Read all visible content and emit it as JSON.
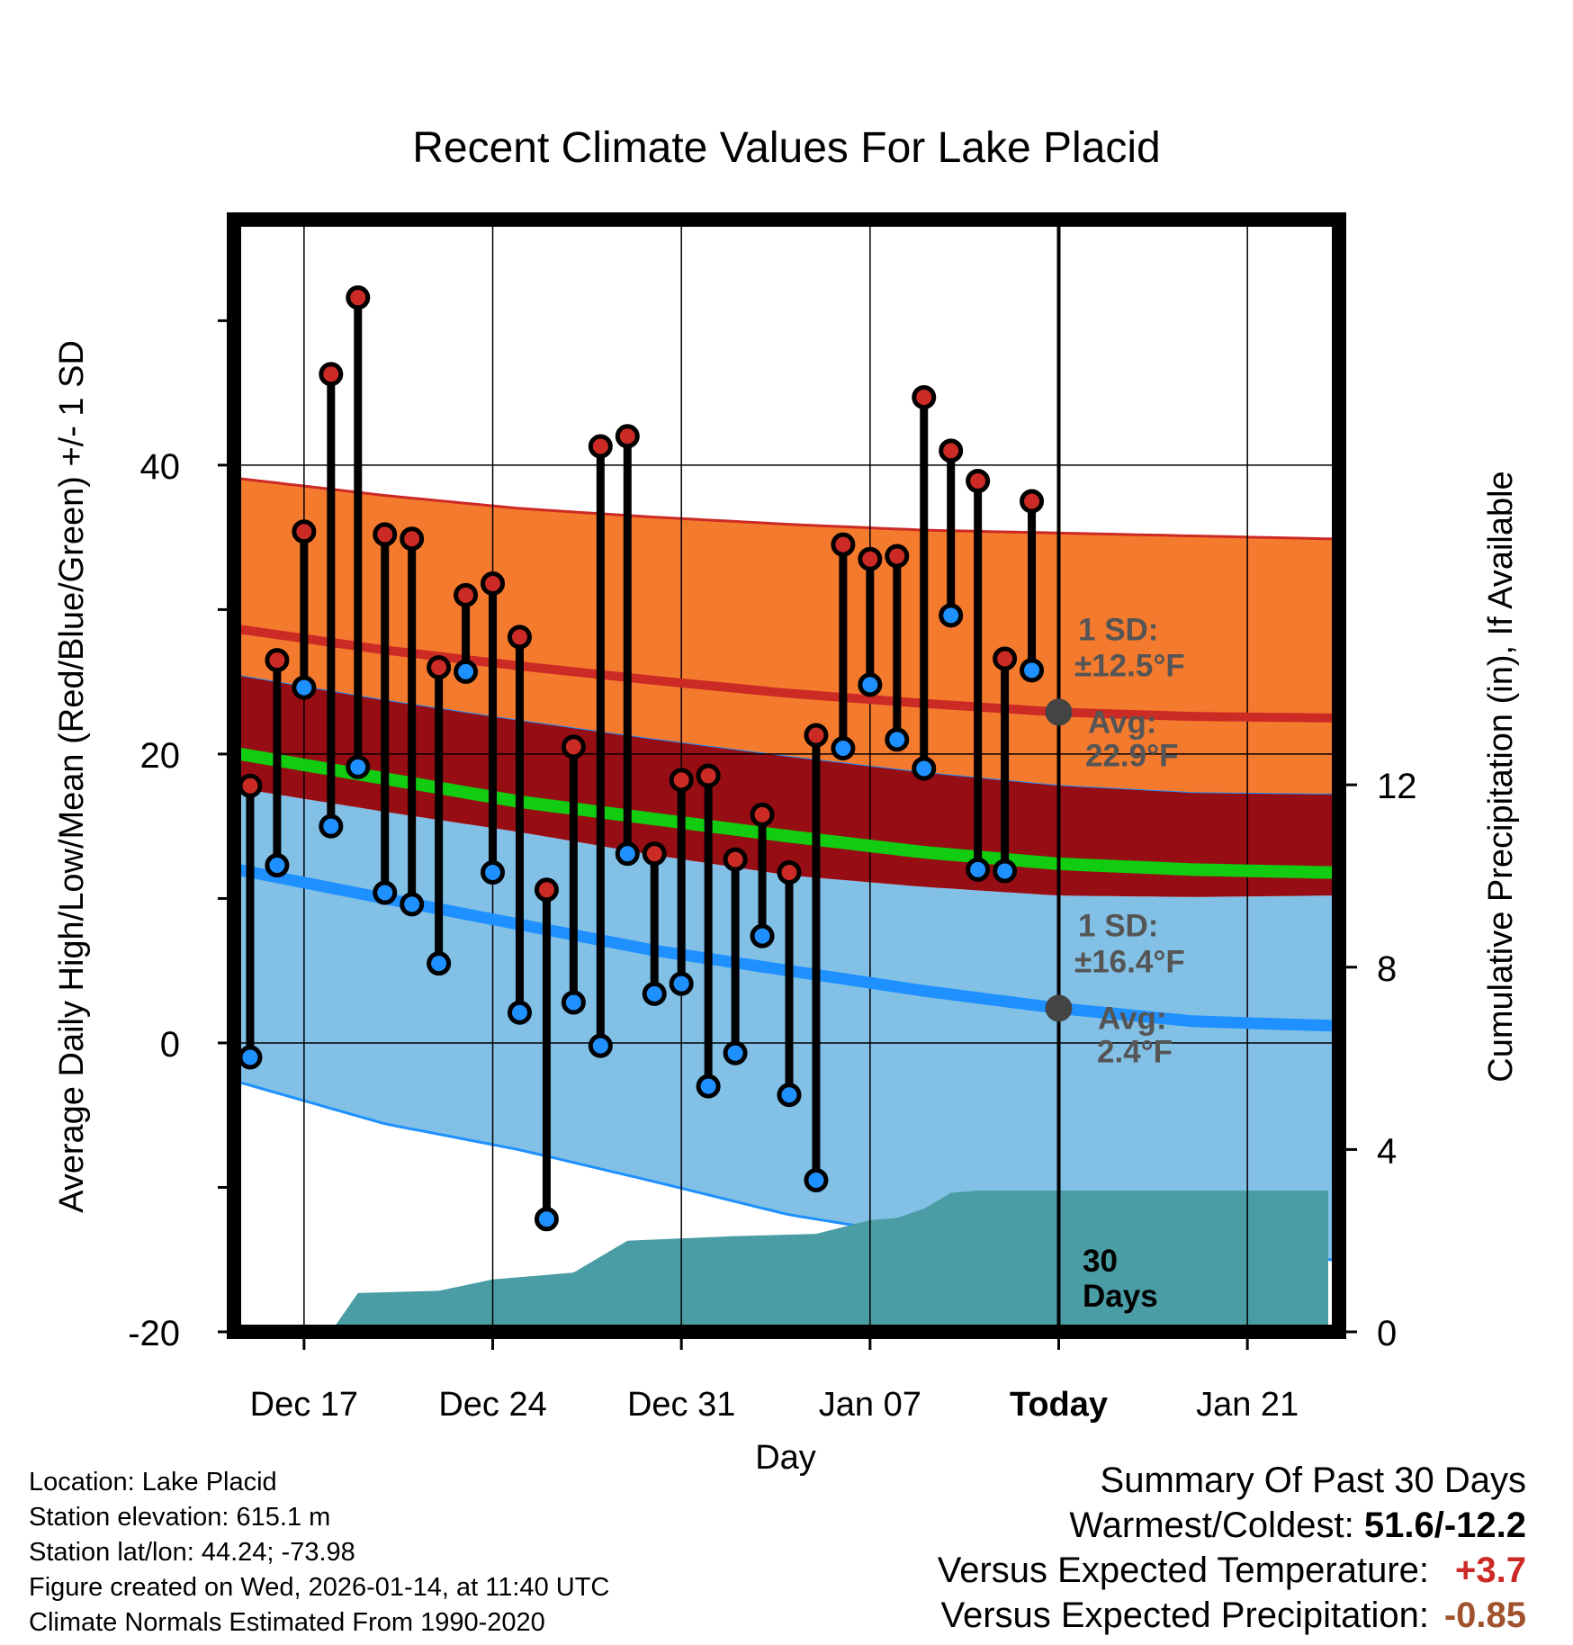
{
  "chart_data": {
    "type": "line",
    "title": "Recent Climate Values For Lake Placid",
    "xlabel": "Day",
    "ylabel": "Average Daily High/Low/Mean (Red/Blue/Green) +/- 1 SD",
    "y2label": "Cumulative Precipitation (in), If Available",
    "ylim": [
      -20,
      57
    ],
    "y2lim": [
      0,
      24.4
    ],
    "xlim": [
      -30.6,
      10.4
    ],
    "x_unit": "days relative to today (Jan 14)",
    "x_ticks": [
      {
        "x": -28,
        "label": "Dec 17"
      },
      {
        "x": -21,
        "label": "Dec 24"
      },
      {
        "x": -14,
        "label": "Dec 31"
      },
      {
        "x": -7,
        "label": "Jan 07"
      },
      {
        "x": 0,
        "label": "Today"
      },
      {
        "x": 7,
        "label": "Jan 21"
      }
    ],
    "y_ticks": [
      -20,
      0,
      20,
      40
    ],
    "y_minor_ticks": [
      -10,
      10,
      30,
      50
    ],
    "y2_ticks": [
      0,
      4,
      8,
      12
    ],
    "days": [
      -30,
      -29,
      -28,
      -27,
      -26,
      -25,
      -24,
      -23,
      -22,
      -21,
      -20,
      -19,
      -18,
      -17,
      -16,
      -15,
      -14,
      -13,
      -12,
      -11,
      -10,
      -9,
      -8,
      -7,
      -6,
      -5,
      -4,
      -3,
      -2,
      -1
    ],
    "series": [
      {
        "name": "Daily High",
        "color": "#cc2a25",
        "values": [
          17.8,
          26.5,
          35.4,
          46.3,
          51.6,
          35.2,
          34.9,
          26.0,
          31.0,
          31.8,
          28.1,
          10.6,
          20.5,
          41.3,
          42.0,
          13.1,
          18.2,
          18.5,
          12.7,
          15.8,
          11.8,
          21.3,
          34.5,
          33.5,
          33.7,
          44.7,
          41.0,
          38.9,
          26.6,
          37.5
        ]
      },
      {
        "name": "Daily Low",
        "color": "#1e90ff",
        "values": [
          -1.0,
          12.3,
          24.6,
          15.0,
          19.1,
          10.4,
          9.6,
          5.5,
          25.7,
          11.8,
          2.1,
          -12.2,
          2.8,
          -0.2,
          13.1,
          3.4,
          4.1,
          -3.0,
          -0.7,
          7.4,
          -3.6,
          -9.5,
          20.4,
          24.8,
          21.0,
          19.0,
          29.6,
          12.0,
          11.9,
          25.8
        ]
      }
    ],
    "normals": {
      "days": [
        -31,
        -25,
        -20,
        -15,
        -10,
        -5,
        0,
        5,
        10
      ],
      "high_avg": [
        28.8,
        27.2,
        26.1,
        25.1,
        24.2,
        23.5,
        22.9,
        22.6,
        22.5
      ],
      "high_upper": [
        39.2,
        37.9,
        37.0,
        36.4,
        35.9,
        35.5,
        35.3,
        35.1,
        34.9
      ],
      "high_lower": [
        25.6,
        23.7,
        22.3,
        21.0,
        19.8,
        18.7,
        17.8,
        17.3,
        17.2
      ],
      "mean_avg": [
        20.2,
        18.3,
        16.7,
        15.5,
        14.3,
        13.2,
        12.4,
        12.0,
        11.8
      ],
      "low_avg": [
        12.2,
        10.0,
        8.2,
        6.4,
        5.0,
        3.6,
        2.4,
        1.5,
        1.2
      ],
      "low_upper": [
        17.8,
        16.0,
        14.6,
        13.0,
        11.6,
        10.8,
        10.2,
        10.1,
        10.2
      ],
      "low_lower": [
        -2.4,
        -5.6,
        -7.4,
        -9.6,
        -11.9,
        -13.4,
        -14.3,
        -14.8,
        -15.0
      ]
    },
    "precip_cumulative": {
      "days": [
        -27,
        -26,
        -23,
        -21,
        -19,
        -18,
        -16,
        -12,
        -9,
        -8,
        -7,
        -6,
        -5,
        -4,
        -3,
        0,
        10
      ],
      "values": [
        0.0,
        0.85,
        0.9,
        1.15,
        1.25,
        1.3,
        2.0,
        2.1,
        2.15,
        2.3,
        2.45,
        2.5,
        2.7,
        3.05,
        3.1,
        3.1,
        3.1
      ]
    },
    "annotations": {
      "high_sd": "1 SD:",
      "high_sd_value": "±12.5°F",
      "high_avg_label": "Avg:",
      "high_avg_value": "22.9°F",
      "low_sd": "1 SD:",
      "low_sd_value": "±16.4°F",
      "low_avg_label": "Avg:",
      "low_avg_value": "2.4°F",
      "window_line1": "30",
      "window_line2": "Days"
    },
    "colors": {
      "high_band": "#f47a2e",
      "high_line": "#cc2a25",
      "mean_band": "#960e14",
      "mean_line": "#11cc11",
      "low_band": "#82c0e6",
      "low_line": "#1e90ff",
      "precip": "#4a9da4",
      "marker_high": "#cc2a25",
      "marker_low": "#1e90ff",
      "avg_dot": "#444444",
      "annotation_text": "#555555"
    }
  },
  "station": {
    "location": "Location: Lake Placid",
    "elevation": "Station elevation: 615.1 m",
    "latlon": "Station lat/lon: 44.24; -73.98",
    "created": "Figure created on Wed, 2026-01-14, at 11:40 UTC",
    "normals": "Climate Normals Estimated From 1990-2020"
  },
  "summary": {
    "heading": "Summary Of Past 30 Days",
    "warmest_coldest_label": "Warmest/Coldest: ",
    "warmest_coldest_value": "51.6/-12.2",
    "temp_label": "Versus Expected Temperature:",
    "temp_value": "+3.7",
    "precip_label": "Versus Expected Precipitation:",
    "precip_value": "-0.85"
  }
}
